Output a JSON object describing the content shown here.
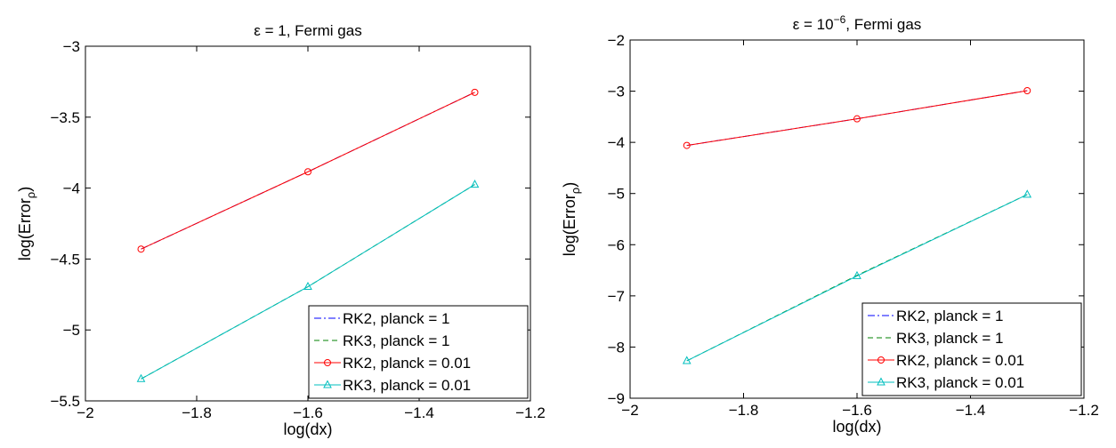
{
  "chart_data": [
    {
      "type": "line",
      "title": "ε = 1, Fermi gas",
      "xlabel": "log(dx)",
      "ylabel": "log(Error",
      "ylabel_sub": "ρ",
      "ylabel_close": ")",
      "xlim": [
        -2,
        -1.2
      ],
      "ylim": [
        -5.5,
        -3
      ],
      "xticks": [
        -2,
        -1.8,
        -1.6,
        -1.4,
        -1.2
      ],
      "xtick_labels": [
        "−2",
        "−1.8",
        "−1.6",
        "−1.4",
        "−1.2"
      ],
      "yticks": [
        -5.5,
        -5,
        -4.5,
        -4,
        -3.5,
        -3
      ],
      "ytick_labels": [
        "−5.5",
        "−5",
        "−4.5",
        "−4",
        "−3.5",
        "−3"
      ],
      "grid": false,
      "legend_position": "bottom-right",
      "x": [
        -1.9,
        -1.6,
        -1.3
      ],
      "series": [
        {
          "name": "RK2, planck = 1",
          "values": [
            -4.43,
            -3.885,
            -3.325
          ],
          "color": "#0000ff",
          "style": "dashdot",
          "marker": "none"
        },
        {
          "name": "RK3, planck = 1",
          "values": [
            -5.345,
            -4.695,
            -3.975
          ],
          "color": "#008000",
          "style": "dashed",
          "marker": "none"
        },
        {
          "name": "RK2, planck = 0.01",
          "values": [
            -4.43,
            -3.885,
            -3.325
          ],
          "color": "#ff0000",
          "style": "solid",
          "marker": "circle"
        },
        {
          "name": "RK3, planck = 0.01",
          "values": [
            -5.345,
            -4.695,
            -3.975
          ],
          "color": "#00bfbf",
          "style": "solid",
          "marker": "triangle"
        }
      ]
    },
    {
      "type": "line",
      "title": "ε = 10",
      "title_sup": "−6",
      "title_rest": ", Fermi gas",
      "xlabel": "log(dx)",
      "ylabel": "log(Error",
      "ylabel_sub": "ρ",
      "ylabel_close": ")",
      "xlim": [
        -2,
        -1.2
      ],
      "ylim": [
        -9,
        -2
      ],
      "xticks": [
        -2,
        -1.8,
        -1.6,
        -1.4,
        -1.2
      ],
      "xtick_labels": [
        "−2",
        "−1.8",
        "−1.6",
        "−1.4",
        "−1.2"
      ],
      "yticks": [
        -9,
        -8,
        -7,
        -6,
        -5,
        -4,
        -3,
        -2
      ],
      "ytick_labels": [
        "−9",
        "−8",
        "−7",
        "−6",
        "−5",
        "−4",
        "−3",
        "−2"
      ],
      "grid": false,
      "legend_position": "bottom-right",
      "x": [
        -1.9,
        -1.6,
        -1.3
      ],
      "series": [
        {
          "name": "RK2, planck = 1",
          "values": [
            -4.06,
            -3.54,
            -2.99
          ],
          "color": "#0000ff",
          "style": "dashdot",
          "marker": "none"
        },
        {
          "name": "RK3, planck = 1",
          "values": [
            -8.27,
            -6.6,
            -5.02
          ],
          "color": "#008000",
          "style": "dashed",
          "marker": "none"
        },
        {
          "name": "RK2, planck = 0.01",
          "values": [
            -4.06,
            -3.54,
            -2.99
          ],
          "color": "#ff0000",
          "style": "solid",
          "marker": "circle"
        },
        {
          "name": "RK3, planck = 0.01",
          "values": [
            -8.27,
            -6.61,
            -5.02
          ],
          "color": "#00bfbf",
          "style": "solid",
          "marker": "triangle"
        }
      ]
    }
  ]
}
